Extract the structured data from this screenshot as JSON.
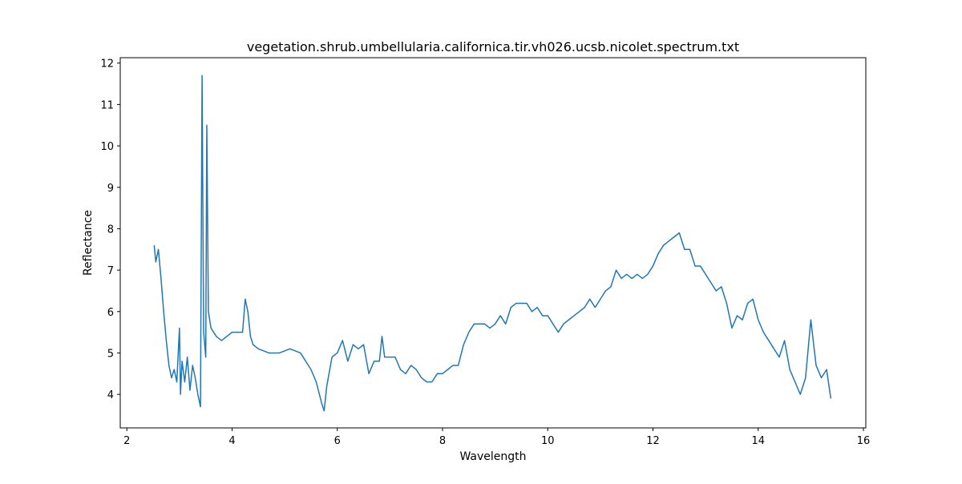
{
  "chart_data": {
    "type": "line",
    "title": "vegetation.shrub.umbellularia.californica.tir.vh026.ucsb.nicolet.spectrum.txt",
    "x_label": "Wavelength",
    "y_label": "Reflectance",
    "x": [
      2.52,
      2.55,
      2.6,
      2.65,
      2.7,
      2.75,
      2.8,
      2.85,
      2.9,
      2.95,
      3.0,
      3.02,
      3.05,
      3.1,
      3.15,
      3.2,
      3.25,
      3.3,
      3.35,
      3.4,
      3.43,
      3.46,
      3.5,
      3.52,
      3.55,
      3.6,
      3.7,
      3.8,
      3.9,
      4.0,
      4.1,
      4.2,
      4.25,
      4.3,
      4.35,
      4.4,
      4.5,
      4.7,
      4.9,
      5.1,
      5.3,
      5.5,
      5.6,
      5.7,
      5.75,
      5.8,
      5.9,
      6.0,
      6.1,
      6.2,
      6.3,
      6.4,
      6.5,
      6.6,
      6.7,
      6.8,
      6.85,
      6.9,
      7.0,
      7.1,
      7.2,
      7.3,
      7.4,
      7.5,
      7.6,
      7.7,
      7.8,
      7.9,
      8.0,
      8.1,
      8.2,
      8.3,
      8.4,
      8.5,
      8.6,
      8.7,
      8.8,
      8.9,
      9.0,
      9.1,
      9.2,
      9.3,
      9.4,
      9.5,
      9.6,
      9.7,
      9.8,
      9.9,
      10.0,
      10.1,
      10.2,
      10.3,
      10.4,
      10.5,
      10.6,
      10.7,
      10.8,
      10.9,
      11.0,
      11.1,
      11.2,
      11.3,
      11.4,
      11.5,
      11.6,
      11.7,
      11.8,
      11.9,
      12.0,
      12.1,
      12.2,
      12.3,
      12.4,
      12.5,
      12.6,
      12.7,
      12.8,
      12.9,
      13.0,
      13.1,
      13.2,
      13.3,
      13.4,
      13.5,
      13.6,
      13.7,
      13.8,
      13.9,
      14.0,
      14.1,
      14.2,
      14.3,
      14.4,
      14.5,
      14.6,
      14.7,
      14.8,
      14.9,
      15.0,
      15.1,
      15.2,
      15.3,
      15.38
    ],
    "series": [
      {
        "color": "#1f77b4",
        "values": [
          7.6,
          7.2,
          7.5,
          6.8,
          6.0,
          5.3,
          4.7,
          4.4,
          4.6,
          4.3,
          5.6,
          4.0,
          4.8,
          4.3,
          4.9,
          4.1,
          4.7,
          4.4,
          4.0,
          3.7,
          11.7,
          5.5,
          4.9,
          10.5,
          6.0,
          5.6,
          5.4,
          5.3,
          5.4,
          5.5,
          5.5,
          5.5,
          6.3,
          6.0,
          5.4,
          5.2,
          5.1,
          5.0,
          5.0,
          5.1,
          5.0,
          4.6,
          4.3,
          3.8,
          3.6,
          4.2,
          4.9,
          5.0,
          5.3,
          4.8,
          5.2,
          5.1,
          5.2,
          4.5,
          4.8,
          4.8,
          5.4,
          4.9,
          4.9,
          4.9,
          4.6,
          4.5,
          4.7,
          4.6,
          4.4,
          4.3,
          4.3,
          4.5,
          4.5,
          4.6,
          4.7,
          4.7,
          5.2,
          5.5,
          5.7,
          5.7,
          5.7,
          5.6,
          5.7,
          5.9,
          5.7,
          6.1,
          6.2,
          6.2,
          6.2,
          6.0,
          6.1,
          5.9,
          5.9,
          5.7,
          5.5,
          5.7,
          5.8,
          5.9,
          6.0,
          6.1,
          6.3,
          6.1,
          6.3,
          6.5,
          6.6,
          7.0,
          6.8,
          6.9,
          6.8,
          6.9,
          6.8,
          6.9,
          7.1,
          7.4,
          7.6,
          7.7,
          7.8,
          7.9,
          7.5,
          7.5,
          7.1,
          7.1,
          6.9,
          6.7,
          6.5,
          6.6,
          6.2,
          5.6,
          5.9,
          5.8,
          6.2,
          6.3,
          5.8,
          5.5,
          5.3,
          5.1,
          4.9,
          5.3,
          4.6,
          4.3,
          4.0,
          4.4,
          5.8,
          4.7,
          4.4,
          4.6,
          3.9
        ]
      }
    ],
    "xlim": [
      1.875,
      16.045
    ],
    "ylim": [
      3.19,
      12.13
    ],
    "xticks": [
      2,
      4,
      6,
      8,
      10,
      12,
      14,
      16
    ],
    "yticks": [
      4,
      5,
      6,
      7,
      8,
      9,
      10,
      11,
      12
    ]
  }
}
